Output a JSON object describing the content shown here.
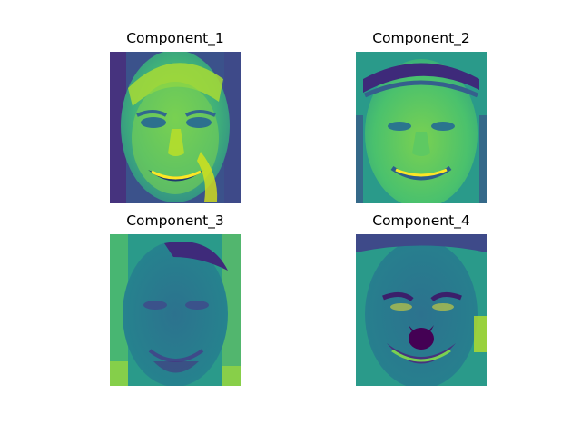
{
  "panels": [
    {
      "title": "Component_1",
      "bg": "#2f8f8a",
      "face": "#6fd36a",
      "dark": "#40206f"
    },
    {
      "title": "Component_2",
      "bg": "#3aa88a",
      "face": "#62c96e",
      "dark": "#3a2c7a"
    },
    {
      "title": "Component_3",
      "bg": "#2a8e8c",
      "face": "#2b6f8e",
      "dark": "#42206d"
    },
    {
      "title": "Component_4",
      "bg": "#2b8d8c",
      "face": "#2f6c8e",
      "dark": "#3b1f6b"
    }
  ],
  "colors": {
    "yellow": "#fde725",
    "purple": "#440154",
    "teal": "#21918c",
    "green": "#5ec962"
  }
}
